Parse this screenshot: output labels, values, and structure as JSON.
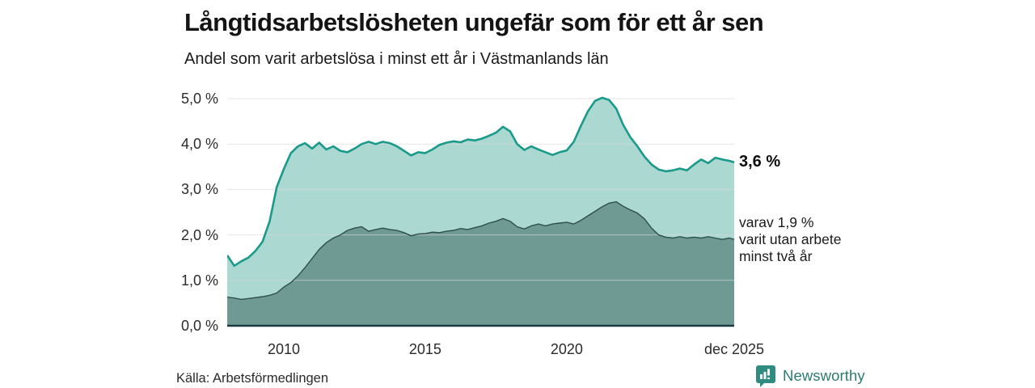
{
  "chart_data": {
    "type": "area",
    "title": "Långtidsarbetslösheten ungefär som för ett år sen",
    "subtitle": "Andel som varit arbetslösa i minst ett år i Västmanlands län",
    "xlim": [
      2008.0,
      2025.92
    ],
    "ylim": [
      0,
      5.3
    ],
    "grid": "horizontal",
    "yticks": [
      {
        "v": 0,
        "label": "0,0 %"
      },
      {
        "v": 1,
        "label": "1,0 %"
      },
      {
        "v": 2,
        "label": "2,0 %"
      },
      {
        "v": 3,
        "label": "3,0 %"
      },
      {
        "v": 4,
        "label": "4,0 %"
      },
      {
        "v": 5,
        "label": "5,0 %"
      }
    ],
    "xticks": [
      {
        "t": 2010.0,
        "label": "2010"
      },
      {
        "t": 2015.0,
        "label": "2015"
      },
      {
        "t": 2020.0,
        "label": "2020"
      },
      {
        "t": 2025.92,
        "label": "dec 2025"
      }
    ],
    "x": [
      2008.0,
      2008.25,
      2008.5,
      2008.75,
      2009.0,
      2009.25,
      2009.5,
      2009.75,
      2010.0,
      2010.25,
      2010.5,
      2010.75,
      2011.0,
      2011.25,
      2011.5,
      2011.75,
      2012.0,
      2012.25,
      2012.5,
      2012.75,
      2013.0,
      2013.25,
      2013.5,
      2013.75,
      2014.0,
      2014.25,
      2014.5,
      2014.75,
      2015.0,
      2015.25,
      2015.5,
      2015.75,
      2016.0,
      2016.25,
      2016.5,
      2016.75,
      2017.0,
      2017.25,
      2017.5,
      2017.75,
      2018.0,
      2018.25,
      2018.5,
      2018.75,
      2019.0,
      2019.25,
      2019.5,
      2019.75,
      2020.0,
      2020.25,
      2020.5,
      2020.75,
      2021.0,
      2021.25,
      2021.5,
      2021.75,
      2022.0,
      2022.25,
      2022.5,
      2022.75,
      2023.0,
      2023.25,
      2023.5,
      2023.75,
      2024.0,
      2024.25,
      2024.5,
      2024.75,
      2025.0,
      2025.25,
      2025.5,
      2025.75,
      2025.92
    ],
    "series": [
      {
        "name": "Andel som varit arbetslösa i minst ett år",
        "end_value": "3,6 %",
        "values": [
          1.55,
          1.32,
          1.42,
          1.5,
          1.65,
          1.85,
          2.3,
          3.05,
          3.45,
          3.8,
          3.95,
          4.02,
          3.9,
          4.03,
          3.88,
          3.95,
          3.85,
          3.82,
          3.9,
          4.0,
          4.05,
          4.0,
          4.05,
          4.02,
          3.95,
          3.85,
          3.75,
          3.82,
          3.8,
          3.88,
          3.98,
          4.03,
          4.06,
          4.04,
          4.1,
          4.08,
          4.12,
          4.18,
          4.25,
          4.38,
          4.28,
          4.0,
          3.87,
          3.95,
          3.88,
          3.82,
          3.76,
          3.82,
          3.86,
          4.05,
          4.4,
          4.72,
          4.95,
          5.02,
          4.97,
          4.78,
          4.42,
          4.15,
          3.95,
          3.72,
          3.55,
          3.44,
          3.4,
          3.42,
          3.46,
          3.42,
          3.55,
          3.66,
          3.58,
          3.7,
          3.66,
          3.63,
          3.6
        ]
      },
      {
        "name": "varav utan arbete minst två år",
        "end_value": "1,9 %",
        "values": [
          0.63,
          0.61,
          0.58,
          0.6,
          0.62,
          0.64,
          0.67,
          0.72,
          0.85,
          0.95,
          1.1,
          1.28,
          1.48,
          1.68,
          1.83,
          1.93,
          2.0,
          2.1,
          2.15,
          2.18,
          2.08,
          2.12,
          2.15,
          2.12,
          2.1,
          2.05,
          1.98,
          2.02,
          2.03,
          2.06,
          2.05,
          2.08,
          2.1,
          2.14,
          2.12,
          2.16,
          2.2,
          2.26,
          2.3,
          2.36,
          2.3,
          2.18,
          2.13,
          2.2,
          2.24,
          2.2,
          2.24,
          2.26,
          2.28,
          2.24,
          2.32,
          2.42,
          2.52,
          2.62,
          2.7,
          2.73,
          2.63,
          2.55,
          2.48,
          2.35,
          2.15,
          2.0,
          1.95,
          1.93,
          1.96,
          1.93,
          1.95,
          1.93,
          1.96,
          1.93,
          1.9,
          1.93,
          1.9
        ]
      }
    ],
    "annotations": {
      "total_end_label": "3,6 %",
      "subset_lines": [
        "varav 1,9 %",
        "varit utan arbete",
        "minst två år"
      ]
    },
    "colors": {
      "line_total": "#1a9a8b",
      "fill_total": "#abd8d1",
      "line_subset": "#304e4a",
      "fill_subset": "#6f9a94",
      "baseline": "#1d3a40",
      "gridline": "#d9d9d9"
    }
  },
  "footer": {
    "source": "Källa: Arbetsförmedlingen",
    "brand": "Newsworthy",
    "brand_color": "#2d7a72",
    "logo_color": "#2e8c80"
  }
}
